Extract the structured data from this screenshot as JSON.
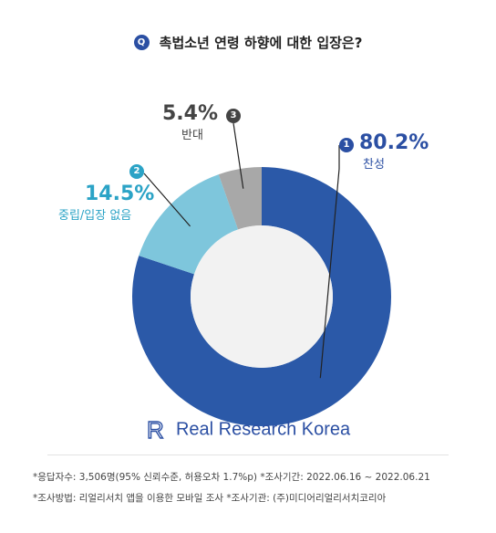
{
  "question": {
    "badge": "Q",
    "text": "촉법소년 연령 하향에 대한 입장은?"
  },
  "chart_data": {
    "type": "pie",
    "donut": true,
    "slices": [
      {
        "index": "1",
        "label": "찬성",
        "value": 80.2,
        "value_text": "80.2%",
        "color": "#2b59a8"
      },
      {
        "index": "2",
        "label": "중립/입장 없음",
        "value": 14.5,
        "value_text": "14.5%",
        "color": "#7ec6dc"
      },
      {
        "index": "3",
        "label": "반대",
        "value": 5.4,
        "value_text": "5.4%",
        "color": "#a8a8a8"
      }
    ],
    "label_colors": {
      "1": "#2b4fa3",
      "2": "#2ba3c6",
      "3": "#444444"
    },
    "badge_colors": {
      "1": "#2b4fa3",
      "2": "#2ba3c6",
      "3": "#444444"
    }
  },
  "brand": {
    "name": "Real Research Korea",
    "logo_letter": "R"
  },
  "notes": [
    "*응답자수: 3,506명(95% 신뢰수준, 허용오차 1.7%p)  *조사기간: 2022.06.16 ~ 2022.06.21",
    "*조사방법: 리얼리서치 앱을 이용한 모바일 조사  *조사기관: (주)미디어리얼리서치코리아"
  ]
}
